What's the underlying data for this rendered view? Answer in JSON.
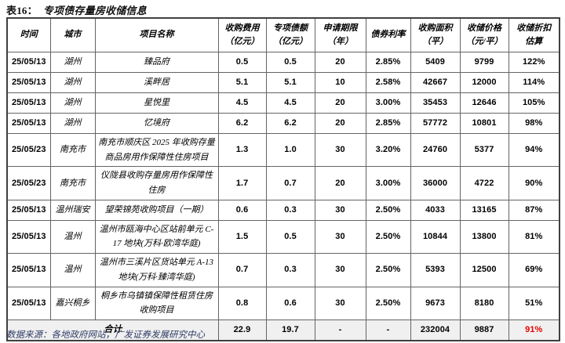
{
  "title": {
    "prefix": "表16：",
    "text": "专项债存量房收储信息"
  },
  "source_note": "数据来源：各地政府网站，广发证券发展研究中心",
  "colors": {
    "title_color": "#111111",
    "footer_navy": "#2f3c66",
    "total_row_bg": "#f0f0f0",
    "highlight_red": "#e60000",
    "border_gray": "#646464"
  },
  "table": {
    "headers": [
      "时间",
      "城市",
      "项目名称",
      "收购费用\n（亿元）",
      "专项债额\n（亿元）",
      "申请期限\n（年）",
      "债券利率",
      "收购面积\n（平）",
      "收储价格\n（元/平）",
      "收储折扣\n估算"
    ],
    "rows": [
      [
        "25/05/13",
        "湖州",
        "臻品府",
        "0.5",
        "0.5",
        "20",
        "2.85%",
        "5409",
        "9799",
        "122%"
      ],
      [
        "25/05/13",
        "湖州",
        "溪畔居",
        "5.1",
        "5.1",
        "10",
        "2.58%",
        "42667",
        "12000",
        "114%"
      ],
      [
        "25/05/13",
        "湖州",
        "星悦里",
        "4.5",
        "4.5",
        "20",
        "3.00%",
        "35453",
        "12646",
        "105%"
      ],
      [
        "25/05/13",
        "湖州",
        "忆境府",
        "6.2",
        "6.2",
        "20",
        "2.85%",
        "57772",
        "10801",
        "98%"
      ],
      [
        "25/05/23",
        "南充市",
        "南充市顺庆区 2025 年收购存量商品房用作保障性住房项目",
        "1.3",
        "1.0",
        "30",
        "3.20%",
        "24760",
        "5377",
        "94%"
      ],
      [
        "25/05/23",
        "南充市",
        "仪陇县收购存量房用作保障性住房",
        "1.7",
        "0.7",
        "20",
        "3.00%",
        "36000",
        "4722",
        "90%"
      ],
      [
        "25/05/13",
        "温州瑞安",
        "望荣锦苑收购项目（一期）",
        "0.6",
        "0.3",
        "30",
        "2.50%",
        "4033",
        "13165",
        "87%"
      ],
      [
        "25/05/13",
        "温州",
        "温州市瓯海中心区站前单元 C-17 地块(万科·欧湾华庭)",
        "1.5",
        "0.5",
        "30",
        "2.50%",
        "10844",
        "13800",
        "81%"
      ],
      [
        "25/05/13",
        "温州",
        "温州市三溪片区货站单元 A-13 地块(万科·臻湾华庭)",
        "0.7",
        "0.3",
        "30",
        "2.50%",
        "5393",
        "12500",
        "69%"
      ],
      [
        "25/05/13",
        "嘉兴桐乡",
        "桐乡市乌镇镇保障性租赁住房收购项目",
        "0.8",
        "0.6",
        "30",
        "2.50%",
        "9673",
        "8180",
        "51%"
      ]
    ],
    "total": {
      "label": "合计",
      "values": [
        "22.9",
        "19.7",
        "-",
        "-",
        "232004",
        "9887",
        "91%"
      ]
    }
  }
}
